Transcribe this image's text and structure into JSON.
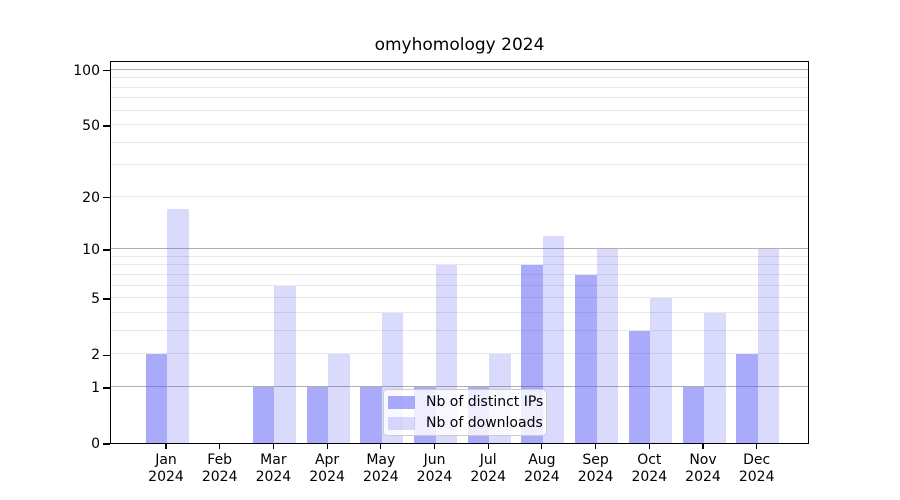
{
  "chart_data": {
    "type": "bar",
    "title": "omyhomology 2024",
    "year_label": "2024",
    "categories": [
      "Jan",
      "Feb",
      "Mar",
      "Apr",
      "May",
      "Jun",
      "Jul",
      "Aug",
      "Sep",
      "Oct",
      "Nov",
      "Dec"
    ],
    "series": [
      {
        "name": "Nb of distinct IPs",
        "key": "distinct-ips",
        "color": "rgba(85,85,245,0.5)",
        "values": [
          2,
          0,
          1,
          1,
          1,
          1,
          1,
          8,
          7,
          3,
          1,
          2
        ]
      },
      {
        "name": "Nb of downloads",
        "key": "downloads",
        "color": "rgba(85,85,245,0.22)",
        "values": [
          17,
          0,
          6,
          2,
          4,
          8,
          2,
          12,
          10,
          5,
          4,
          10
        ]
      }
    ],
    "y_axis": {
      "scale": "log10(value+1)",
      "range": [
        0,
        100
      ],
      "tick_values": [
        0,
        1,
        2,
        5,
        10,
        20,
        50,
        100
      ],
      "major_gridlines": [
        1,
        10,
        100
      ],
      "minor_gridlines": [
        2,
        3,
        4,
        5,
        6,
        7,
        8,
        9,
        20,
        30,
        40,
        50,
        60,
        70,
        80,
        90
      ]
    },
    "xlabel": "",
    "ylabel": "",
    "grid": true,
    "legend_position": "lower center"
  },
  "colors": {
    "major_grid": "#b0b0b0",
    "minor_grid": "#e7e7e7",
    "spine": "#000000",
    "legend_border": "#cccccc",
    "legend_background": "rgba(255,255,255,0.8)"
  }
}
